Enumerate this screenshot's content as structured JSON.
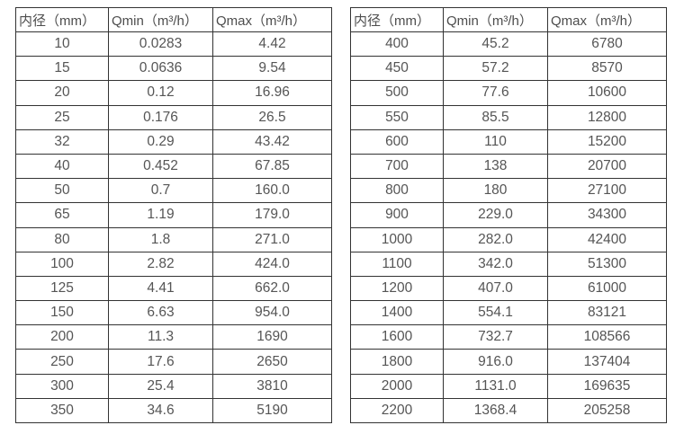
{
  "colors": {
    "border": "#333333",
    "text": "#4d4d4d",
    "background": "#ffffff"
  },
  "table_left": {
    "headers": [
      "内径（mm）",
      "Qmin（m³/h）",
      "Qmax（m³/h）"
    ],
    "rows": [
      [
        "10",
        "0.0283",
        "4.42"
      ],
      [
        "15",
        "0.0636",
        "9.54"
      ],
      [
        "20",
        "0.12",
        "16.96"
      ],
      [
        "25",
        "0.176",
        "26.5"
      ],
      [
        "32",
        "0.29",
        "43.42"
      ],
      [
        "40",
        "0.452",
        "67.85"
      ],
      [
        "50",
        "0.7",
        "160.0"
      ],
      [
        "65",
        "1.19",
        "179.0"
      ],
      [
        "80",
        "1.8",
        "271.0"
      ],
      [
        "100",
        "2.82",
        "424.0"
      ],
      [
        "125",
        "4.41",
        "662.0"
      ],
      [
        "150",
        "6.63",
        "954.0"
      ],
      [
        "200",
        "11.3",
        "1690"
      ],
      [
        "250",
        "17.6",
        "2650"
      ],
      [
        "300",
        "25.4",
        "3810"
      ],
      [
        "350",
        "34.6",
        "5190"
      ]
    ]
  },
  "table_right": {
    "headers": [
      "内径（mm）",
      "Qmin（m³/h）",
      "Qmax（m³/h）"
    ],
    "rows": [
      [
        "400",
        "45.2",
        "6780"
      ],
      [
        "450",
        "57.2",
        "8570"
      ],
      [
        "500",
        "77.6",
        "10600"
      ],
      [
        "550",
        "85.5",
        "12800"
      ],
      [
        "600",
        "110",
        "15200"
      ],
      [
        "700",
        "138",
        "20700"
      ],
      [
        "800",
        "180",
        "27100"
      ],
      [
        "900",
        "229.0",
        "34300"
      ],
      [
        "1000",
        "282.0",
        "42400"
      ],
      [
        "1100",
        "342.0",
        "51300"
      ],
      [
        "1200",
        "407.0",
        "61000"
      ],
      [
        "1400",
        "554.1",
        "83121"
      ],
      [
        "1600",
        "732.7",
        "108566"
      ],
      [
        "1800",
        "916.0",
        "137404"
      ],
      [
        "2000",
        "1131.0",
        "169635"
      ],
      [
        "2200",
        "1368.4",
        "205258"
      ]
    ]
  }
}
